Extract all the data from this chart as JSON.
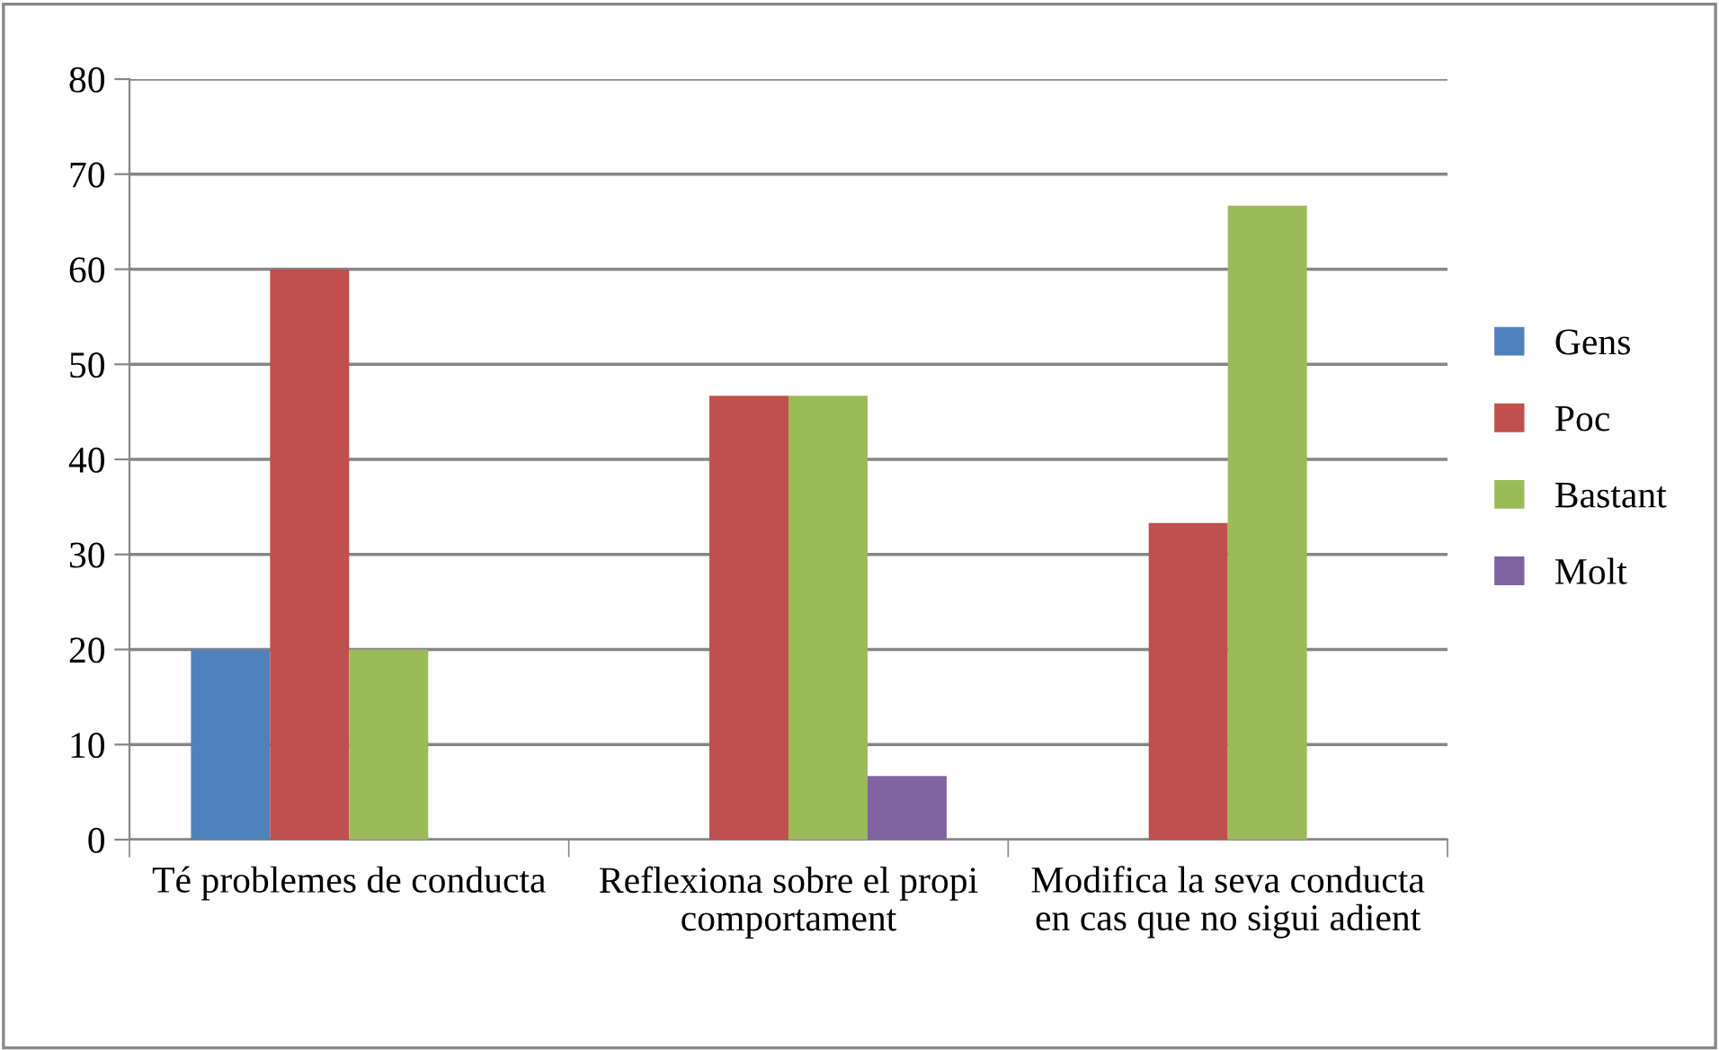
{
  "chart_data": {
    "type": "bar",
    "categories": [
      "Té problemes de conducta",
      "Reflexiona sobre el propi comportament",
      "Modifica la seva conducta en cas que no sigui adient"
    ],
    "series": [
      {
        "name": "Gens",
        "color": "#4f81bd",
        "values": [
          20,
          0,
          0
        ]
      },
      {
        "name": "Poc",
        "color": "#c0504d",
        "values": [
          60,
          46.7,
          33.3
        ]
      },
      {
        "name": "Bastant",
        "color": "#9bbb59",
        "values": [
          20,
          46.7,
          66.7
        ]
      },
      {
        "name": "Molt",
        "color": "#8064a2",
        "values": [
          0,
          6.7,
          0
        ]
      }
    ],
    "ylim": [
      0,
      80
    ],
    "yticks": [
      0,
      10,
      20,
      30,
      40,
      50,
      60,
      70,
      80
    ],
    "grid": "y",
    "legend": "right"
  }
}
